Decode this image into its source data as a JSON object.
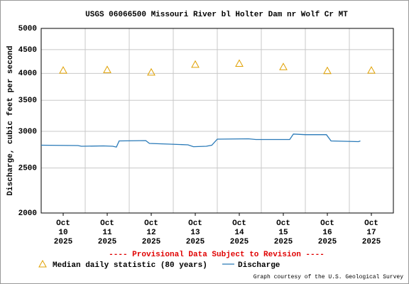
{
  "chart_data": {
    "type": "line",
    "title": "USGS 06066500 Missouri River bl Holter Dam nr Wolf Cr MT",
    "ylabel": "Discharge, cubic feet per second",
    "log_scale": true,
    "grid": true,
    "xlim": [
      "2025-10-10T00:00",
      "2025-10-18T00:00"
    ],
    "ylim": [
      2000,
      5000
    ],
    "yticks": [
      2000,
      2500,
      3000,
      3500,
      4000,
      4500,
      5000
    ],
    "xticks": [
      {
        "value": "2025-10-10T12:00",
        "label": [
          "Oct",
          "10",
          "2025"
        ]
      },
      {
        "value": "2025-10-11T12:00",
        "label": [
          "Oct",
          "11",
          "2025"
        ]
      },
      {
        "value": "2025-10-12T12:00",
        "label": [
          "Oct",
          "12",
          "2025"
        ]
      },
      {
        "value": "2025-10-13T12:00",
        "label": [
          "Oct",
          "13",
          "2025"
        ]
      },
      {
        "value": "2025-10-14T12:00",
        "label": [
          "Oct",
          "14",
          "2025"
        ]
      },
      {
        "value": "2025-10-15T12:00",
        "label": [
          "Oct",
          "15",
          "2025"
        ]
      },
      {
        "value": "2025-10-16T12:00",
        "label": [
          "Oct",
          "16",
          "2025"
        ]
      },
      {
        "value": "2025-10-17T12:00",
        "label": [
          "Oct",
          "17",
          "2025"
        ]
      }
    ],
    "xgrid": [
      "2025-10-11T00:00",
      "2025-10-12T00:00",
      "2025-10-13T00:00",
      "2025-10-14T00:00",
      "2025-10-15T00:00",
      "2025-10-16T00:00",
      "2025-10-17T00:00"
    ],
    "annotation": "---- Provisional Data Subject to Revision ----",
    "credit": "Graph courtesy of the U.S. Geological Survey",
    "series": [
      {
        "name": "Median daily statistic (80 years)",
        "color": "#e0a000",
        "marker": "triangle",
        "x": [
          "2025-10-10T12:00",
          "2025-10-11T12:00",
          "2025-10-12T12:00",
          "2025-10-13T12:00",
          "2025-10-14T12:00",
          "2025-10-15T12:00",
          "2025-10-16T12:00",
          "2025-10-17T12:00"
        ],
        "values": [
          4060,
          4070,
          4020,
          4180,
          4200,
          4130,
          4050,
          4060
        ]
      },
      {
        "name": "Discharge",
        "color": "#2a7ab8",
        "x": [
          "2025-10-10T00:00",
          "2025-10-10T20:00",
          "2025-10-10T22:00",
          "2025-10-11T10:00",
          "2025-10-11T15:00",
          "2025-10-11T17:00",
          "2025-10-11T18:30",
          "2025-10-12T09:00",
          "2025-10-12T11:00",
          "2025-10-12T22:00",
          "2025-10-13T08:00",
          "2025-10-13T11:00",
          "2025-10-13T18:00",
          "2025-10-13T21:00",
          "2025-10-14T00:00",
          "2025-10-14T17:00",
          "2025-10-14T21:00",
          "2025-10-15T15:30",
          "2025-10-15T17:30",
          "2025-10-16T00:00",
          "2025-10-16T11:30",
          "2025-10-16T14:00",
          "2025-10-17T05:00",
          "2025-10-17T06:00"
        ],
        "values": [
          2800,
          2795,
          2785,
          2790,
          2785,
          2775,
          2860,
          2865,
          2825,
          2815,
          2805,
          2780,
          2785,
          2800,
          2885,
          2890,
          2880,
          2880,
          2960,
          2950,
          2950,
          2860,
          2850,
          2860
        ]
      }
    ]
  }
}
